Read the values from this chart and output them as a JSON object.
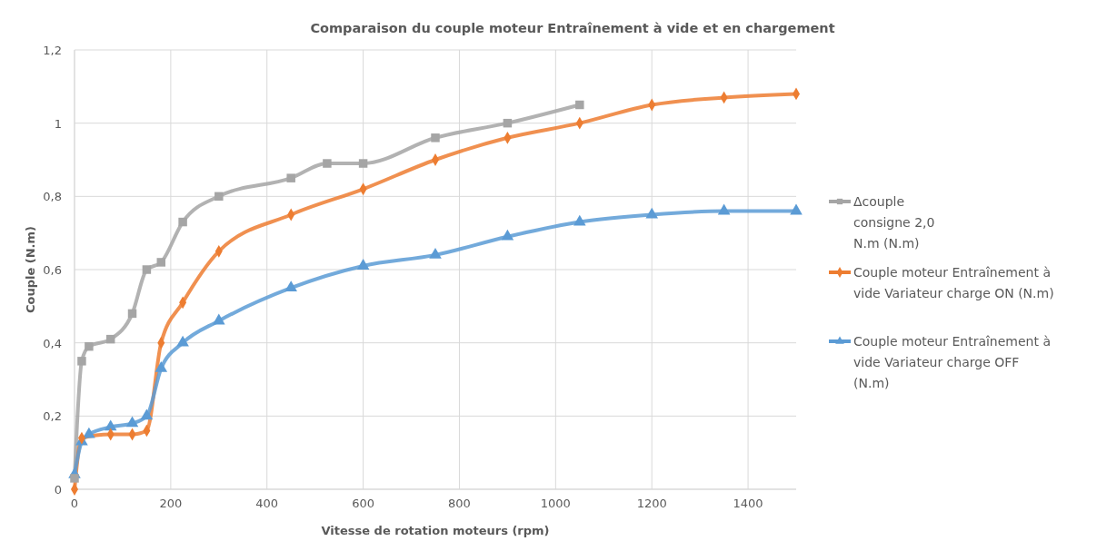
{
  "chart_data": {
    "type": "line",
    "title": "Comparaison du couple moteur Entraînement à vide et en chargement",
    "xlabel": "Vitesse  de rotation moteurs (rpm)",
    "ylabel": "Couple (N.m)",
    "xlim": [
      0,
      1500
    ],
    "xticks": [
      0,
      200,
      400,
      600,
      800,
      1000,
      1200,
      1400
    ],
    "ylim": [
      0,
      1.2
    ],
    "yticks": [
      0,
      {
        "value": 0.2,
        "label": "0,2"
      },
      {
        "value": 0.4,
        "label": "0,4"
      },
      {
        "value": 0.6,
        "label": "0,6"
      },
      {
        "value": 0.8,
        "label": "0,8"
      },
      1,
      {
        "value": 1.2,
        "label": "1,2"
      }
    ],
    "grid": true,
    "legend": "right",
    "line_style": "solid",
    "series": [
      {
        "name": "Δcouple consigne 2,0 N.m (N.m)",
        "color": "#a5a5a5",
        "marker": "square",
        "x": [
          0,
          15,
          30,
          75,
          120,
          150,
          180,
          225,
          300,
          450,
          525,
          600,
          750,
          900,
          1050
        ],
        "values": [
          0.03,
          0.35,
          0.39,
          0.41,
          0.48,
          0.6,
          0.62,
          0.73,
          0.8,
          0.85,
          0.89,
          0.89,
          0.96,
          1.0,
          1.05
        ]
      },
      {
        "name": "Couple moteur Entraînement à vide Variateur charge ON (N.m)",
        "color": "#ed7d31",
        "marker": "diamond",
        "x": [
          0,
          15,
          75,
          120,
          150,
          180,
          225,
          300,
          450,
          600,
          750,
          900,
          1050,
          1200,
          1350,
          1500
        ],
        "values": [
          0,
          0.14,
          0.15,
          0.15,
          0.16,
          0.4,
          0.51,
          0.65,
          0.75,
          0.82,
          0.9,
          0.96,
          1.0,
          1.05,
          1.07,
          1.08
        ]
      },
      {
        "name": "Couple moteur Entraînement à vide Variateur charge OFF (N.m)",
        "color": "#5b9bd5",
        "marker": "triangle",
        "x": [
          0,
          15,
          30,
          75,
          120,
          150,
          180,
          225,
          300,
          450,
          600,
          750,
          900,
          1050,
          1200,
          1350,
          1500
        ],
        "values": [
          0.04,
          0.13,
          0.15,
          0.17,
          0.18,
          0.2,
          0.33,
          0.4,
          0.46,
          0.55,
          0.61,
          0.64,
          0.69,
          0.73,
          0.75,
          0.76,
          0.76
        ]
      }
    ]
  }
}
